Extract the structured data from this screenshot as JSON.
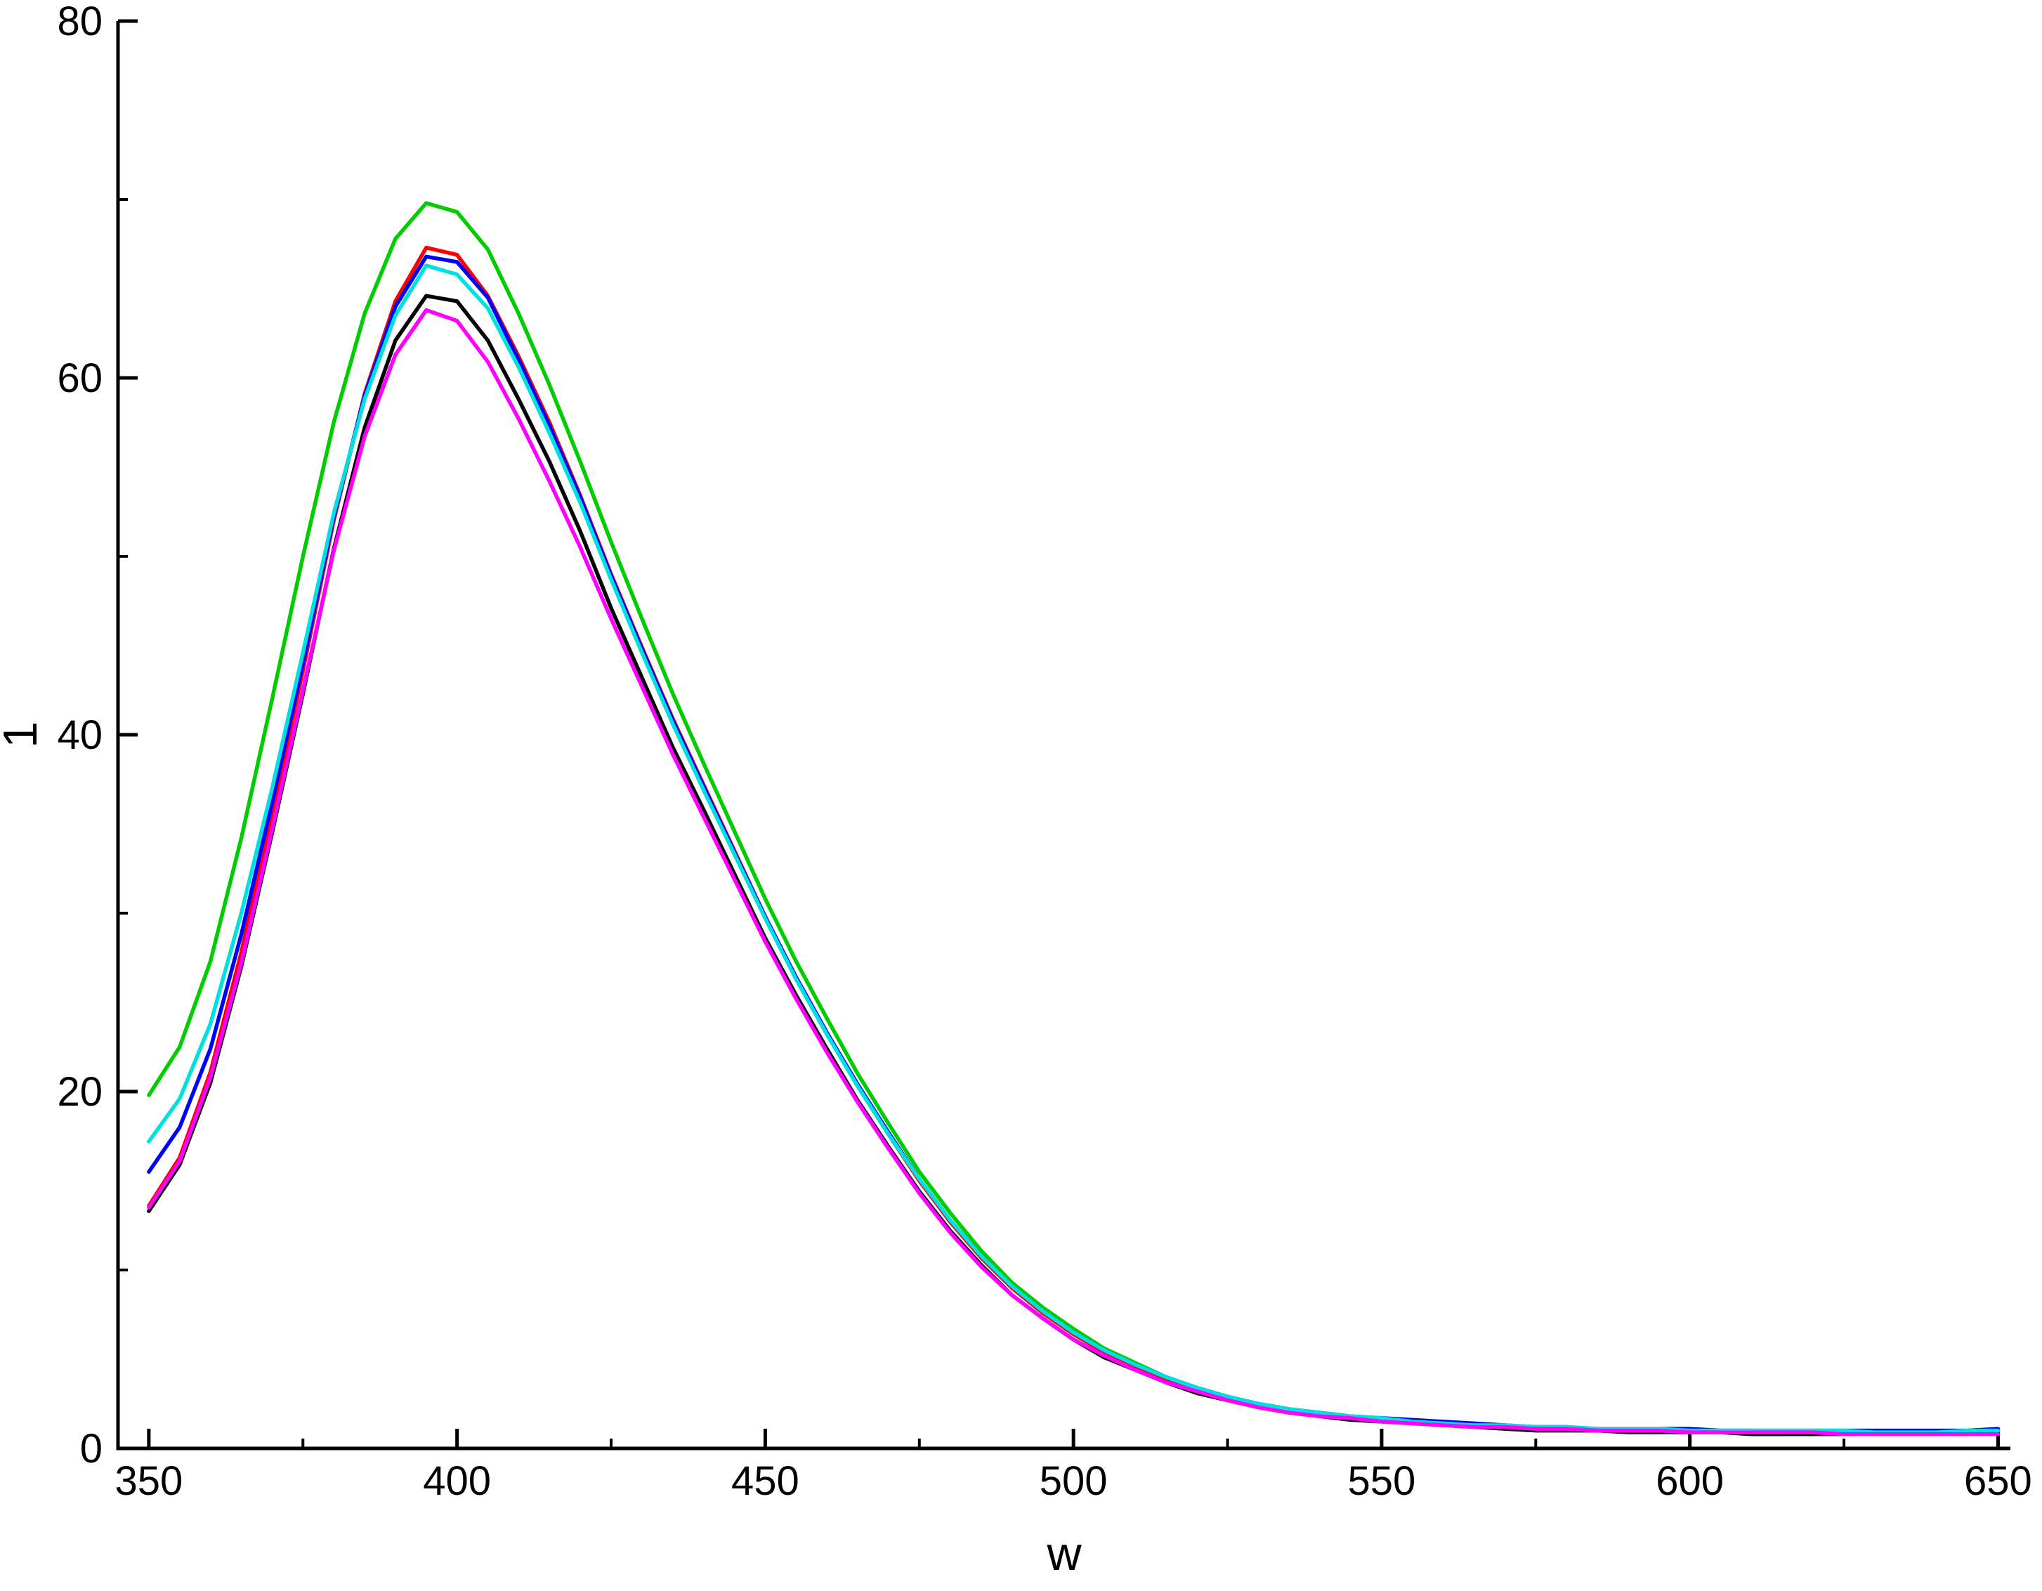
{
  "chart_data": {
    "type": "line",
    "title": "",
    "xlabel": "w",
    "ylabel": "1",
    "xlim": [
      345,
      652
    ],
    "ylim": [
      0,
      80
    ],
    "x_ticks": [
      350,
      400,
      450,
      500,
      550,
      600,
      650
    ],
    "x_minor_ticks": [
      375,
      425,
      475,
      525,
      575,
      625
    ],
    "y_ticks": [
      0,
      20,
      40,
      60,
      80
    ],
    "y_minor_ticks": [
      10,
      30,
      50,
      70
    ],
    "grid": false,
    "legend": "none",
    "axis_color": "#000000",
    "x": [
      350,
      355,
      360,
      365,
      370,
      375,
      380,
      385,
      390,
      395,
      400,
      405,
      410,
      415,
      420,
      425,
      430,
      435,
      440,
      445,
      450,
      455,
      460,
      465,
      470,
      475,
      480,
      485,
      490,
      495,
      500,
      505,
      510,
      515,
      520,
      525,
      530,
      535,
      540,
      545,
      550,
      555,
      560,
      565,
      570,
      575,
      580,
      585,
      590,
      595,
      600,
      605,
      610,
      615,
      620,
      625,
      630,
      635,
      640,
      645,
      650
    ],
    "series": [
      {
        "name": "black",
        "color": "#000000",
        "values": [
          13.3,
          15.9,
          20.5,
          27.0,
          34.5,
          42.3,
          50.4,
          57.2,
          62.1,
          64.6,
          64.3,
          62.1,
          58.8,
          55.3,
          51.4,
          47.1,
          43.2,
          39.3,
          35.8,
          32.2,
          28.6,
          25.4,
          22.4,
          19.5,
          16.9,
          14.4,
          12.2,
          10.3,
          8.6,
          7.3,
          6.1,
          5.1,
          4.4,
          3.7,
          3.1,
          2.7,
          2.3,
          2.0,
          1.8,
          1.6,
          1.5,
          1.4,
          1.3,
          1.2,
          1.1,
          1.0,
          1.0,
          1.0,
          0.9,
          0.9,
          0.9,
          0.9,
          0.8,
          0.8,
          0.8,
          0.8,
          0.8,
          0.8,
          0.8,
          0.8,
          0.9
        ]
      },
      {
        "name": "red",
        "color": "#ff0000",
        "values": [
          13.6,
          16.3,
          21.1,
          27.8,
          35.5,
          43.6,
          52.0,
          59.1,
          64.3,
          67.3,
          66.9,
          64.6,
          61.2,
          57.5,
          53.4,
          49.0,
          44.9,
          40.9,
          37.2,
          33.5,
          29.8,
          26.4,
          23.3,
          20.3,
          17.6,
          15.0,
          12.7,
          10.7,
          9.0,
          7.6,
          6.4,
          5.4,
          4.6,
          3.9,
          3.3,
          2.8,
          2.4,
          2.1,
          1.9,
          1.7,
          1.6,
          1.5,
          1.4,
          1.3,
          1.2,
          1.1,
          1.1,
          1.0,
          1.0,
          1.0,
          1.0,
          0.9,
          0.9,
          0.9,
          0.9,
          0.9,
          0.9,
          0.9,
          0.9,
          0.9,
          1.0
        ]
      },
      {
        "name": "green",
        "color": "#00cc00",
        "values": [
          19.8,
          22.5,
          27.3,
          34.2,
          42.0,
          50.0,
          57.5,
          63.6,
          67.8,
          69.8,
          69.3,
          67.2,
          63.6,
          59.6,
          55.3,
          50.8,
          46.5,
          42.3,
          38.4,
          34.6,
          30.8,
          27.3,
          24.1,
          21.0,
          18.2,
          15.5,
          13.2,
          11.1,
          9.3,
          7.9,
          6.7,
          5.6,
          4.8,
          4.0,
          3.4,
          2.9,
          2.5,
          2.2,
          2.0,
          1.8,
          1.6,
          1.5,
          1.4,
          1.3,
          1.2,
          1.2,
          1.1,
          1.1,
          1.0,
          1.0,
          1.0,
          1.0,
          1.0,
          0.9,
          0.9,
          0.9,
          0.9,
          0.9,
          0.9,
          1.0,
          1.0
        ]
      },
      {
        "name": "blue",
        "color": "#0000ff",
        "values": [
          15.5,
          18.0,
          22.4,
          28.8,
          36.2,
          44.0,
          52.2,
          59.0,
          64.0,
          66.8,
          66.5,
          64.5,
          61.0,
          57.3,
          53.3,
          48.9,
          44.8,
          40.8,
          37.1,
          33.4,
          29.8,
          26.4,
          23.3,
          20.4,
          17.7,
          15.1,
          12.8,
          10.8,
          9.1,
          7.7,
          6.5,
          5.5,
          4.7,
          4.0,
          3.4,
          2.9,
          2.5,
          2.2,
          2.0,
          1.8,
          1.7,
          1.6,
          1.5,
          1.4,
          1.3,
          1.2,
          1.2,
          1.1,
          1.1,
          1.1,
          1.1,
          1.0,
          1.0,
          1.0,
          1.0,
          1.0,
          1.0,
          1.0,
          1.0,
          1.0,
          1.1
        ]
      },
      {
        "name": "cyan",
        "color": "#00e0e0",
        "values": [
          17.2,
          19.6,
          23.8,
          30.0,
          37.0,
          44.6,
          52.4,
          58.8,
          63.5,
          66.3,
          65.8,
          63.9,
          60.6,
          56.9,
          53.0,
          48.7,
          44.6,
          40.6,
          36.9,
          33.3,
          29.7,
          26.3,
          23.2,
          20.3,
          17.6,
          15.1,
          12.8,
          10.8,
          9.1,
          7.7,
          6.5,
          5.5,
          4.7,
          4.0,
          3.4,
          2.9,
          2.5,
          2.2,
          2.0,
          1.8,
          1.7,
          1.5,
          1.4,
          1.3,
          1.3,
          1.2,
          1.2,
          1.1,
          1.1,
          1.1,
          1.0,
          1.0,
          1.0,
          1.0,
          1.0,
          1.0,
          0.9,
          0.9,
          0.9,
          1.0,
          1.0
        ]
      },
      {
        "name": "magenta",
        "color": "#ff00ff",
        "values": [
          13.5,
          16.1,
          20.8,
          27.2,
          34.7,
          42.5,
          50.3,
          56.7,
          61.3,
          63.8,
          63.2,
          60.9,
          57.7,
          54.2,
          50.5,
          46.5,
          42.7,
          38.9,
          35.4,
          31.9,
          28.4,
          25.2,
          22.2,
          19.4,
          16.8,
          14.3,
          12.1,
          10.2,
          8.6,
          7.3,
          6.1,
          5.2,
          4.4,
          3.7,
          3.2,
          2.7,
          2.3,
          2.0,
          1.8,
          1.7,
          1.5,
          1.4,
          1.3,
          1.2,
          1.2,
          1.1,
          1.1,
          1.0,
          1.0,
          1.0,
          0.9,
          0.9,
          0.9,
          0.9,
          0.9,
          0.8,
          0.8,
          0.8,
          0.8,
          0.8,
          0.8
        ]
      }
    ]
  }
}
